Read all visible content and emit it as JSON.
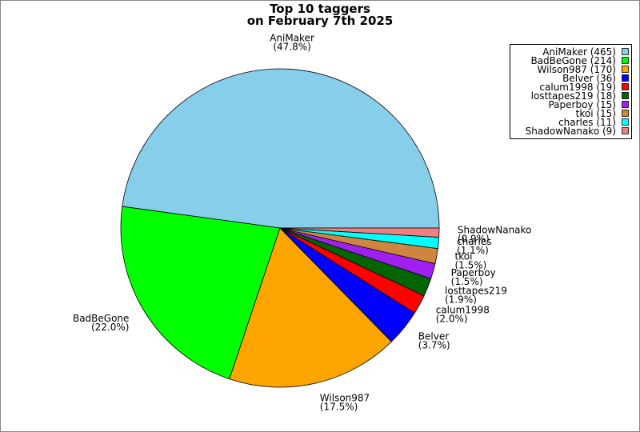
{
  "chart_data": {
    "type": "pie",
    "title": [
      "Top 10 taggers",
      "on February 7th 2025"
    ],
    "categories": [
      "AniMaker",
      "BadBeGone",
      "Wilson987",
      "Belver",
      "calum1998",
      "losttapes219",
      "Paperboy",
      "tkoi",
      "charles",
      "ShadowNanako"
    ],
    "values": [
      465,
      214,
      170,
      36,
      19,
      18,
      15,
      15,
      11,
      9
    ],
    "value_labels": [
      "(465)",
      "(214)",
      "(170)",
      "(36)",
      "(19)",
      "(18)",
      "(15)",
      "(15)",
      "(11)",
      "(9)"
    ],
    "percent_labels": [
      "(47.8%)",
      "(22.0%)",
      "(17.5%)",
      "(3.7%)",
      "(2.0%)",
      "(1.9%)",
      "(1.5%)",
      "(1.5%)",
      "(1.1%)",
      "(0.9%)"
    ],
    "colors": [
      "#87ceeb",
      "#00ff00",
      "#ffa500",
      "#0000ff",
      "#ff0000",
      "#006400",
      "#a020f0",
      "#cd853f",
      "#00ffff",
      "#f08080"
    ],
    "legend": "upper right"
  }
}
